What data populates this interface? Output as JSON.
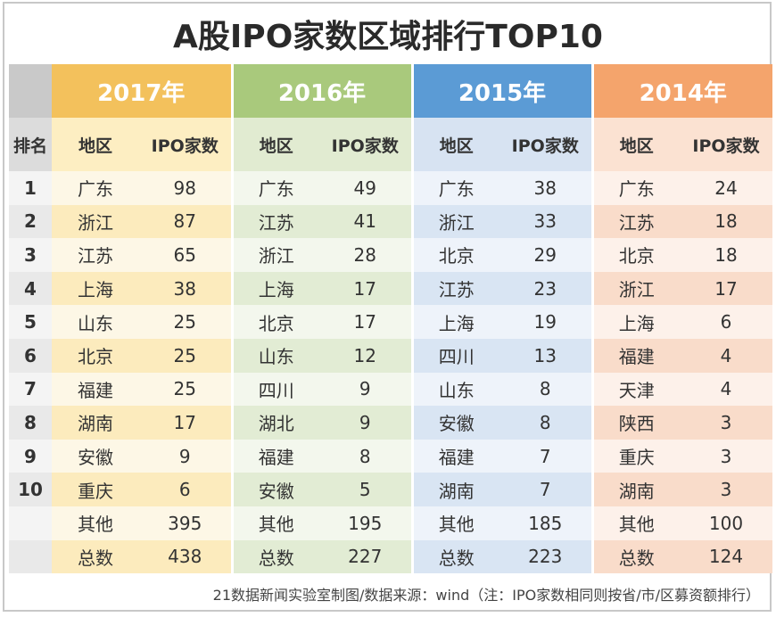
{
  "title": "A股IPO家数区域排行TOP10",
  "header": {
    "rank_label": "排名",
    "region_label": "地区",
    "count_label": "IPO家数",
    "years": [
      "2017年",
      "2016年",
      "2015年",
      "2014年"
    ]
  },
  "rows": [
    {
      "rank": "1",
      "cells": [
        [
          "广东",
          "98"
        ],
        [
          "广东",
          "49"
        ],
        [
          "广东",
          "38"
        ],
        [
          "广东",
          "24"
        ]
      ]
    },
    {
      "rank": "2",
      "cells": [
        [
          "浙江",
          "87"
        ],
        [
          "江苏",
          "41"
        ],
        [
          "浙江",
          "33"
        ],
        [
          "江苏",
          "18"
        ]
      ]
    },
    {
      "rank": "3",
      "cells": [
        [
          "江苏",
          "65"
        ],
        [
          "浙江",
          "28"
        ],
        [
          "北京",
          "29"
        ],
        [
          "北京",
          "18"
        ]
      ]
    },
    {
      "rank": "4",
      "cells": [
        [
          "上海",
          "38"
        ],
        [
          "上海",
          "17"
        ],
        [
          "江苏",
          "23"
        ],
        [
          "浙江",
          "17"
        ]
      ]
    },
    {
      "rank": "5",
      "cells": [
        [
          "山东",
          "25"
        ],
        [
          "北京",
          "17"
        ],
        [
          "上海",
          "19"
        ],
        [
          "上海",
          "6"
        ]
      ]
    },
    {
      "rank": "6",
      "cells": [
        [
          "北京",
          "25"
        ],
        [
          "山东",
          "12"
        ],
        [
          "四川",
          "13"
        ],
        [
          "福建",
          "4"
        ]
      ]
    },
    {
      "rank": "7",
      "cells": [
        [
          "福建",
          "25"
        ],
        [
          "四川",
          "9"
        ],
        [
          "山东",
          "8"
        ],
        [
          "天津",
          "4"
        ]
      ]
    },
    {
      "rank": "8",
      "cells": [
        [
          "湖南",
          "17"
        ],
        [
          "湖北",
          "9"
        ],
        [
          "安徽",
          "8"
        ],
        [
          "陕西",
          "3"
        ]
      ]
    },
    {
      "rank": "9",
      "cells": [
        [
          "安徽",
          "9"
        ],
        [
          "福建",
          "8"
        ],
        [
          "福建",
          "7"
        ],
        [
          "重庆",
          "3"
        ]
      ]
    },
    {
      "rank": "10",
      "cells": [
        [
          "重庆",
          "6"
        ],
        [
          "安徽",
          "5"
        ],
        [
          "湖南",
          "7"
        ],
        [
          "湖南",
          "3"
        ]
      ]
    },
    {
      "rank": "",
      "cells": [
        [
          "其他",
          "395"
        ],
        [
          "其他",
          "195"
        ],
        [
          "其他",
          "185"
        ],
        [
          "其他",
          "100"
        ]
      ]
    },
    {
      "rank": "",
      "cells": [
        [
          "总数",
          "438"
        ],
        [
          "总数",
          "227"
        ],
        [
          "总数",
          "223"
        ],
        [
          "总数",
          "124"
        ]
      ]
    }
  ],
  "footnote": "21数据新闻实验室制图/数据来源：wind（注：IPO家数相同则按省/市/区募资额排行）",
  "colors": {
    "y2017": "#f3c15c",
    "y2016": "#a9c97c",
    "y2015": "#5b9bd5",
    "y2014": "#f4a46c"
  }
}
